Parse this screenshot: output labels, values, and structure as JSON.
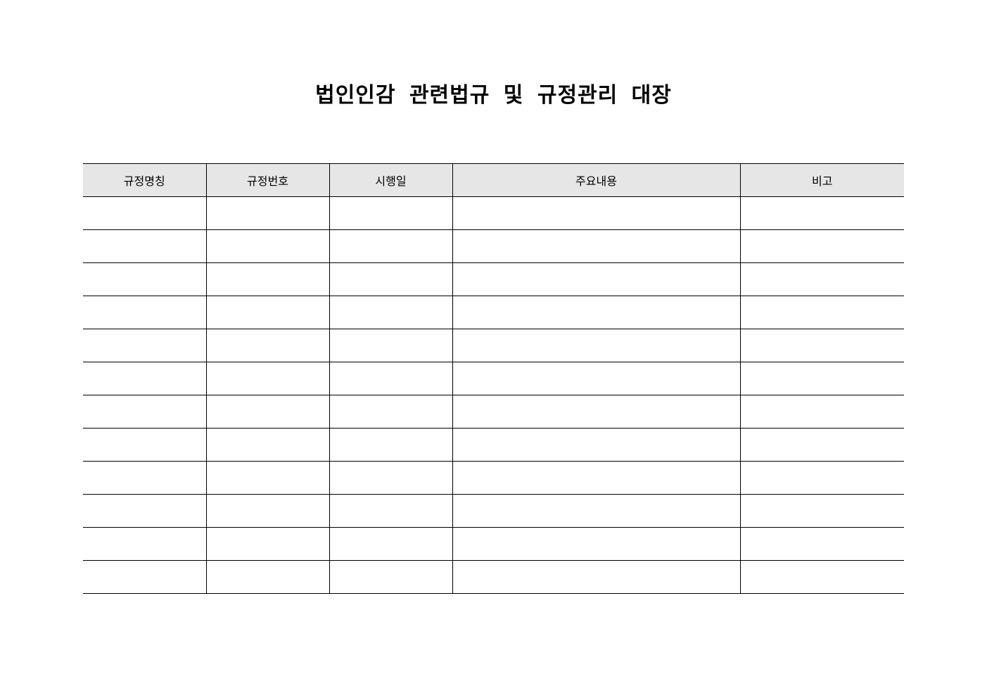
{
  "title": "법인인감 관련법규 및 규정관리 대장",
  "table": {
    "headers": [
      "규정명칭",
      "규정번호",
      "시행일",
      "주요내용",
      "비고"
    ],
    "header_bg": "#e6e6e6",
    "empty_rows": 12
  }
}
